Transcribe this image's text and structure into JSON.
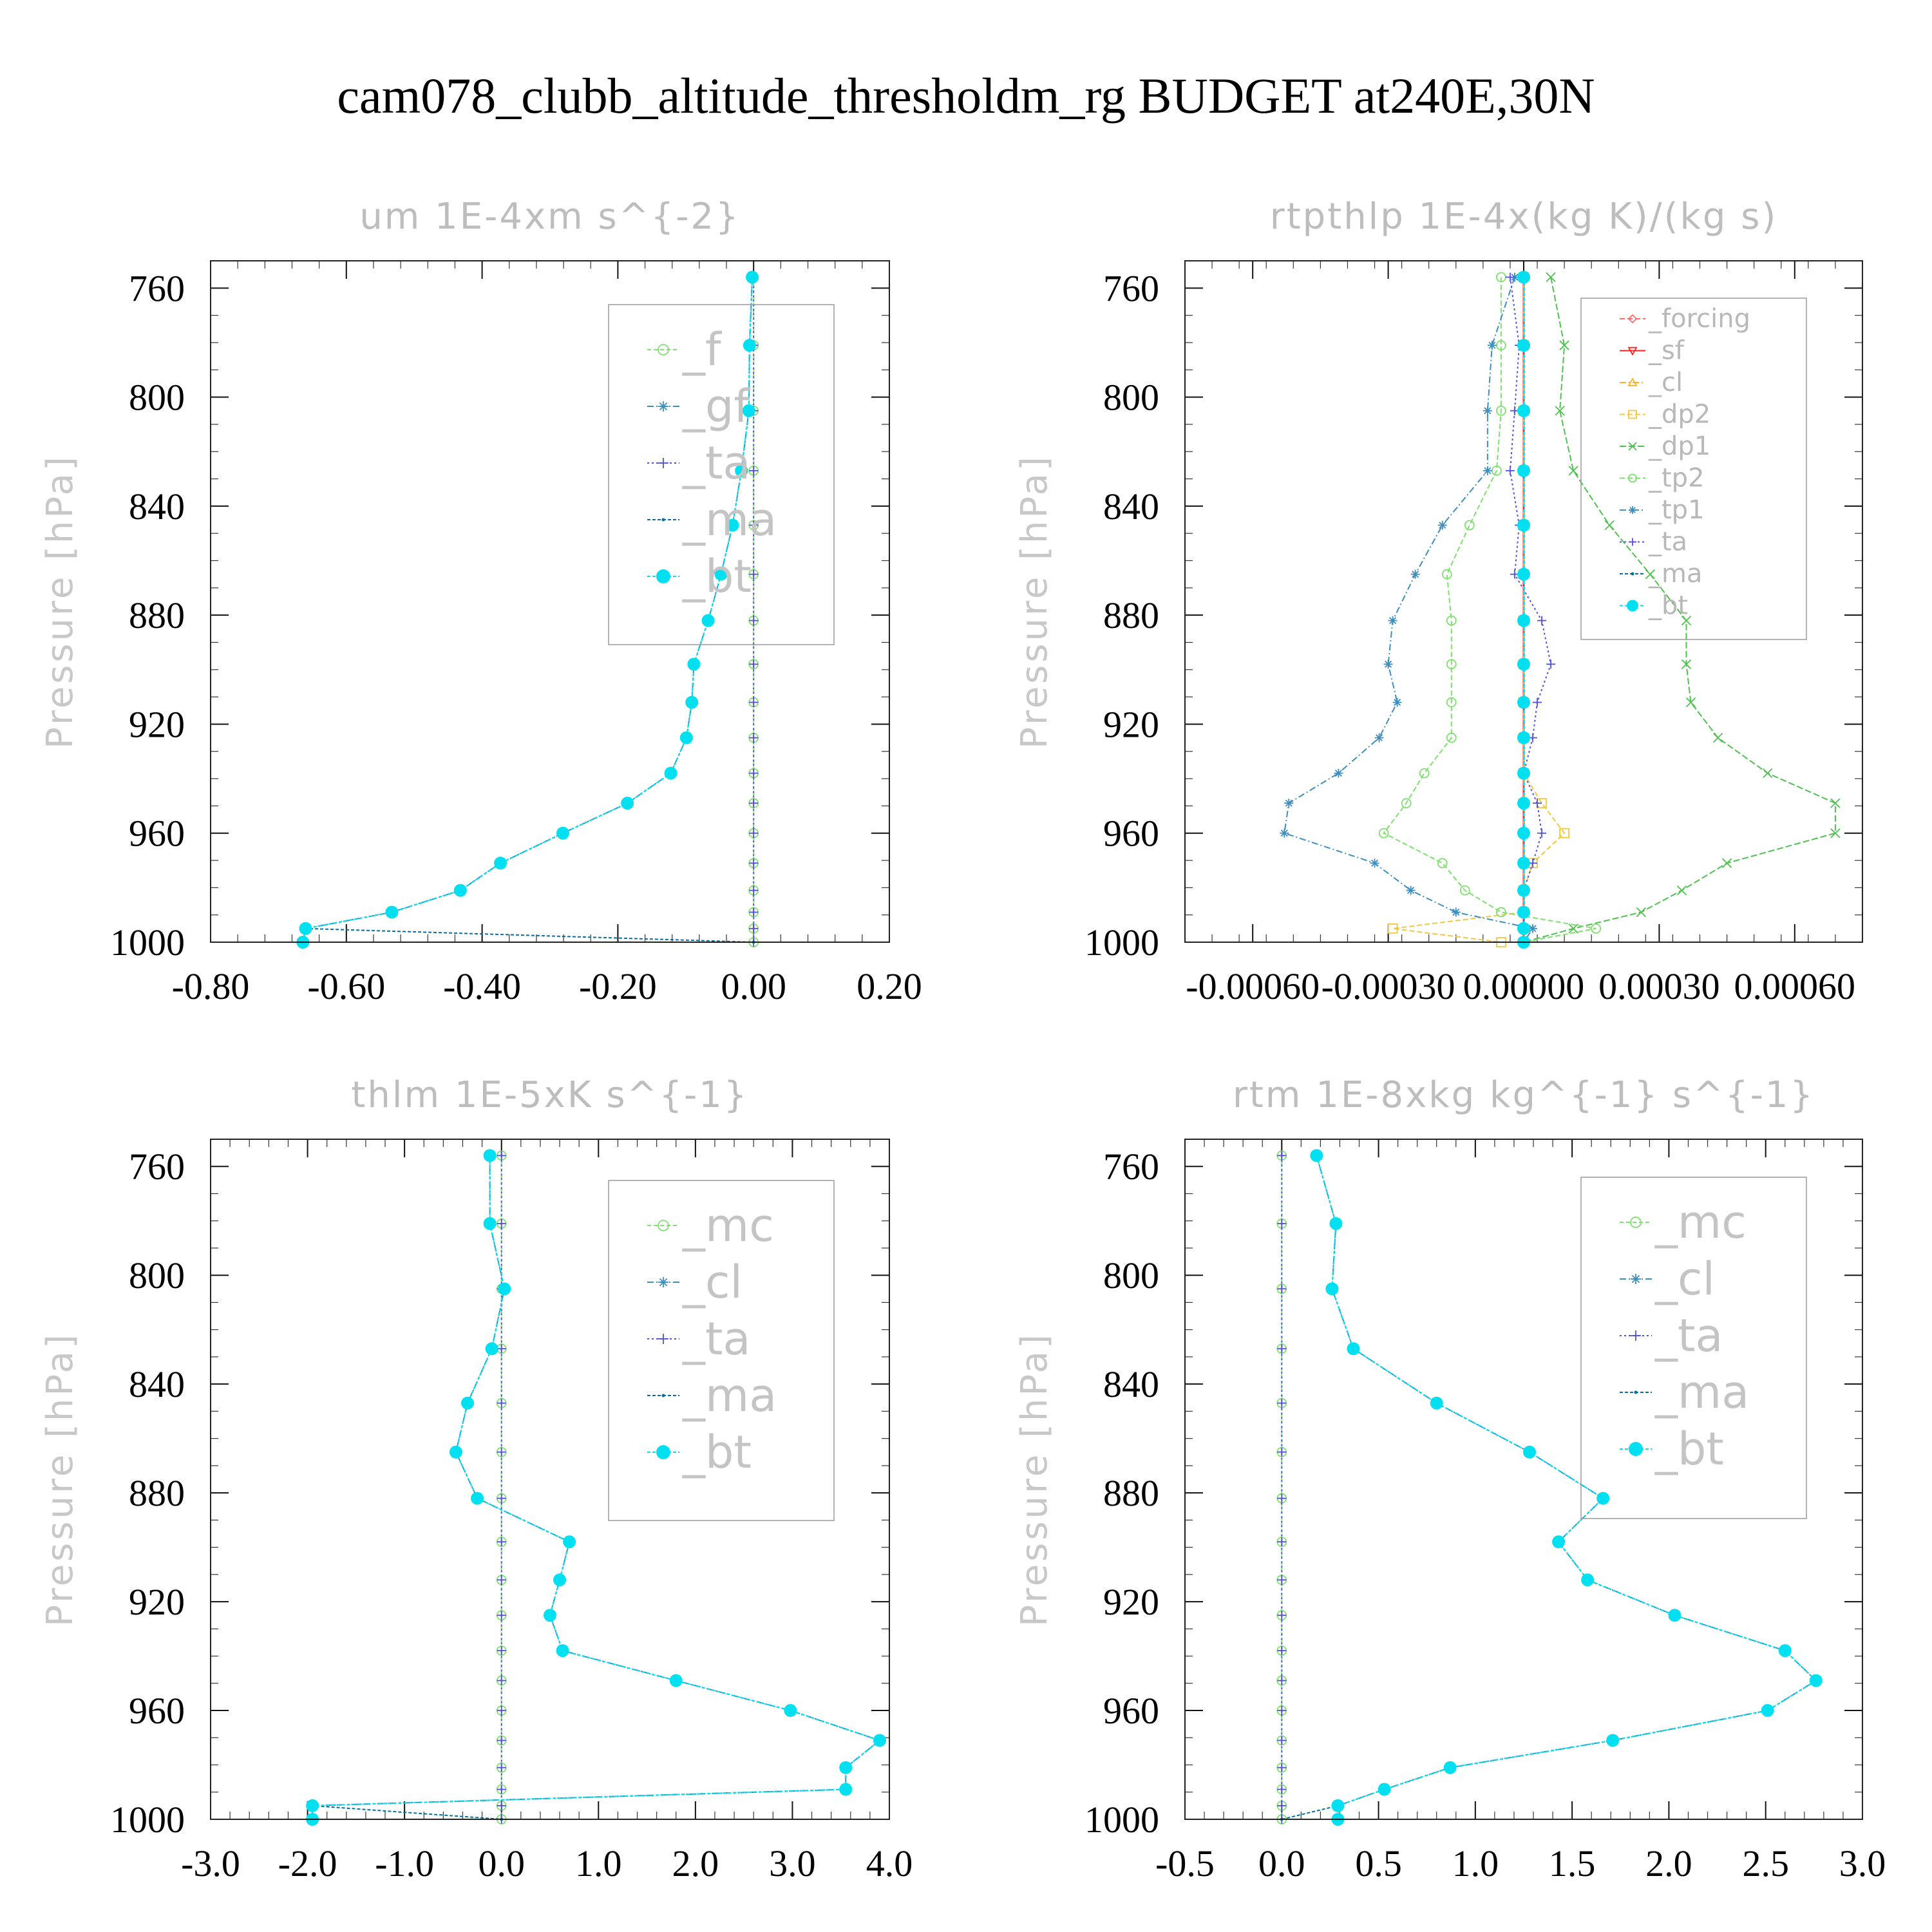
{
  "title": "cam078_clubb_altitude_thresholdm_rg  BUDGET at240E,30N",
  "y_axis_label": "Pressure [hPa]",
  "colors": {
    "_forcing": "#ff6a6a",
    "_sf": "#ff2020",
    "_cl_rtpthlp": "#ffb020",
    "_dp2": "#f0c840",
    "_dp1": "#50c050",
    "_tp2": "#7ee06e",
    "_tp1": "#3c8fc0",
    "_ta": "#5050e0",
    "_ma": "#0070a0",
    "_bt": "#00e0f0",
    "_f": "#7ee06e",
    "_gf": "#3c8fc0",
    "_mc": "#7ee06e",
    "_cl": "#3c8fc0"
  },
  "chart_data": [
    {
      "type": "line",
      "title": "um  1E-4xm s^{-2}",
      "ylabel": "Pressure [hPa]",
      "xlim": [
        -0.8,
        0.2
      ],
      "ylim": [
        750,
        1000
      ],
      "xticks": [
        "-0.80",
        "-0.60",
        "-0.40",
        "-0.20",
        "0.00",
        "0.20"
      ],
      "xtick_values": [
        -0.8,
        -0.6,
        -0.4,
        -0.2,
        0.0,
        0.2
      ],
      "yticks": [
        "760",
        "800",
        "840",
        "880",
        "920",
        "960",
        "1000"
      ],
      "ytick_values": [
        760,
        800,
        840,
        880,
        920,
        960,
        1000
      ],
      "legend_size": "big",
      "legend": [
        "_f",
        "_gf",
        "_ta",
        "_ma",
        "_bt"
      ],
      "pressure": [
        756,
        781,
        805,
        827,
        847,
        865,
        882,
        898,
        912,
        925,
        938,
        949,
        960,
        971,
        981,
        989,
        995,
        1000
      ],
      "series": [
        {
          "name": "_f",
          "marker": "circle",
          "dash": "6,4",
          "values": [
            0.0,
            0.0,
            0.0,
            0.0,
            0.0,
            0.0,
            0.0,
            0.0,
            0.0,
            0.0,
            0.0,
            0.0,
            0.0,
            0.0,
            0.0,
            0.0,
            0.0,
            0.0
          ]
        },
        {
          "name": "_gf",
          "marker": "star",
          "dash": "10,4,2,4",
          "values": [
            -0.002,
            -0.006,
            -0.007,
            -0.018,
            -0.031,
            -0.048,
            -0.067,
            -0.088,
            -0.091,
            -0.099,
            -0.122,
            -0.186,
            -0.281,
            -0.373,
            -0.432,
            -0.533,
            -0.66,
            -0.664
          ]
        },
        {
          "name": "_ta",
          "marker": "plus",
          "dash": "3,4",
          "values": [
            0.0,
            0.0,
            0.0,
            0.0,
            0.0,
            0.0,
            0.0,
            0.0,
            0.0,
            0.0,
            0.0,
            0.0,
            0.0,
            0.0,
            0.0,
            0.0,
            0.0,
            0.0
          ]
        },
        {
          "name": "_ma",
          "marker": "dot",
          "dash": "5,3",
          "values": [
            -0.002,
            -0.006,
            -0.007,
            -0.018,
            -0.031,
            -0.048,
            -0.067,
            -0.088,
            -0.091,
            -0.099,
            -0.122,
            -0.186,
            -0.281,
            -0.373,
            -0.432,
            -0.533,
            -0.66,
            0.0
          ]
        },
        {
          "name": "_bt",
          "marker": "fcircle",
          "dash": "5,3",
          "values": [
            -0.002,
            -0.006,
            -0.007,
            -0.018,
            -0.031,
            -0.048,
            -0.067,
            -0.088,
            -0.091,
            -0.099,
            -0.122,
            -0.186,
            -0.281,
            -0.373,
            -0.432,
            -0.533,
            -0.66,
            -0.664
          ]
        }
      ]
    },
    {
      "type": "line",
      "title": "rtpthlp  1E-4x(kg K)/(kg s)",
      "ylabel": "Pressure [hPa]",
      "xlim": [
        -0.00075,
        0.00075
      ],
      "ylim": [
        750,
        1000
      ],
      "xticks": [
        "-0.00060",
        "-0.00030",
        "0.00000",
        "0.00030",
        "0.00060"
      ],
      "xtick_values": [
        -0.0006,
        -0.0003,
        0.0,
        0.0003,
        0.0006
      ],
      "yticks": [
        "760",
        "800",
        "840",
        "880",
        "920",
        "960",
        "1000"
      ],
      "ytick_values": [
        760,
        800,
        840,
        880,
        920,
        960,
        1000
      ],
      "legend_size": "small",
      "legend": [
        "_forcing",
        "_sf",
        "_cl",
        "_dp2",
        "_dp1",
        "_tp2",
        "_tp1",
        "_ta",
        "_ma",
        "_bt"
      ],
      "pressure": [
        756,
        781,
        805,
        827,
        847,
        865,
        882,
        898,
        912,
        925,
        938,
        949,
        960,
        971,
        981,
        989,
        995,
        1000
      ],
      "series": [
        {
          "name": "_forcing",
          "marker": "diamond",
          "dash": "8,4",
          "values": [
            0.0,
            0.0,
            0.0,
            0.0,
            0.0,
            0.0,
            0.0,
            0.0,
            0.0,
            0.0,
            0.0,
            0.0,
            0.0,
            0.0,
            0.0,
            0.0,
            0.0,
            0.0
          ]
        },
        {
          "name": "_sf",
          "marker": "tdown",
          "dash": "none",
          "values": [
            0.0,
            0.0,
            0.0,
            0.0,
            0.0,
            0.0,
            0.0,
            0.0,
            0.0,
            0.0,
            0.0,
            0.0,
            0.0,
            0.0,
            0.0,
            0.0,
            0.0,
            0.0
          ]
        },
        {
          "name": "_cl",
          "marker": "tup",
          "dash": "10,4,2,4",
          "values": [
            0.0,
            0.0,
            0.0,
            0.0,
            0.0,
            0.0,
            0.0,
            0.0,
            0.0,
            0.0,
            0.0,
            0.0,
            0.0,
            0.0,
            0.0,
            0.0,
            0.0,
            0.0
          ]
        },
        {
          "name": "_dp2",
          "marker": "square",
          "dash": "8,4",
          "values": [
            0.0,
            0.0,
            0.0,
            0.0,
            0.0,
            0.0,
            0.0,
            0.0,
            0.0,
            0.0,
            0.0,
            4e-05,
            9e-05,
            2e-05,
            0.0,
            0.0,
            -0.00029,
            -5e-05
          ]
        },
        {
          "name": "_dp1",
          "marker": "cross",
          "dash": "10,4",
          "values": [
            6e-05,
            9e-05,
            8e-05,
            0.00011,
            0.00019,
            0.00028,
            0.00036,
            0.00036,
            0.00037,
            0.00043,
            0.00054,
            0.00069,
            0.00069,
            0.00045,
            0.00035,
            0.00026,
            0.00011,
            0.0
          ]
        },
        {
          "name": "_tp2",
          "marker": "circle",
          "dash": "8,4",
          "values": [
            -5e-05,
            -5e-05,
            -5e-05,
            -6e-05,
            -0.00012,
            -0.00017,
            -0.00016,
            -0.00016,
            -0.00016,
            -0.00016,
            -0.00022,
            -0.00026,
            -0.00031,
            -0.00018,
            -0.00013,
            -5e-05,
            0.00016,
            0.0
          ]
        },
        {
          "name": "_tp1",
          "marker": "star",
          "dash": "10,4,2,4",
          "values": [
            -2e-05,
            -7e-05,
            -8e-05,
            -8e-05,
            -0.00018,
            -0.00024,
            -0.00029,
            -0.0003,
            -0.00028,
            -0.00032,
            -0.00041,
            -0.00052,
            -0.00053,
            -0.00033,
            -0.00025,
            -0.00015,
            2e-05,
            0.0
          ]
        },
        {
          "name": "_ta",
          "marker": "plus",
          "dash": "3,4",
          "values": [
            -3e-05,
            -1e-05,
            -2e-05,
            -3e-05,
            -1e-05,
            -2e-05,
            4e-05,
            6e-05,
            3e-05,
            2e-05,
            0.0,
            3e-05,
            4e-05,
            2e-05,
            0.0,
            0.0,
            0.0,
            0.0
          ]
        },
        {
          "name": "_ma",
          "marker": "dot",
          "dash": "5,3",
          "values": [
            0.0,
            0.0,
            0.0,
            0.0,
            0.0,
            0.0,
            0.0,
            0.0,
            0.0,
            0.0,
            0.0,
            0.0,
            0.0,
            0.0,
            0.0,
            0.0,
            0.0,
            0.0
          ]
        },
        {
          "name": "_bt",
          "marker": "fcircle",
          "dash": "5,3",
          "values": [
            0.0,
            0.0,
            0.0,
            0.0,
            0.0,
            0.0,
            0.0,
            0.0,
            0.0,
            0.0,
            0.0,
            0.0,
            0.0,
            0.0,
            0.0,
            0.0,
            0.0,
            0.0
          ]
        }
      ]
    },
    {
      "type": "line",
      "title": "thlm  1E-5xK s^{-1}",
      "ylabel": "Pressure [hPa]",
      "xlim": [
        -3.0,
        4.0
      ],
      "ylim": [
        750,
        1000
      ],
      "xticks": [
        "-3.0",
        "-2.0",
        "-1.0",
        "0.0",
        "1.0",
        "2.0",
        "3.0",
        "4.0"
      ],
      "xtick_values": [
        -3.0,
        -2.0,
        -1.0,
        0.0,
        1.0,
        2.0,
        3.0,
        4.0
      ],
      "yticks": [
        "760",
        "800",
        "840",
        "880",
        "920",
        "960",
        "1000"
      ],
      "ytick_values": [
        760,
        800,
        840,
        880,
        920,
        960,
        1000
      ],
      "legend_size": "big",
      "legend": [
        "_mc",
        "_cl",
        "_ta",
        "_ma",
        "_bt"
      ],
      "pressure": [
        756,
        781,
        805,
        827,
        847,
        865,
        882,
        898,
        912,
        925,
        938,
        949,
        960,
        971,
        981,
        989,
        995,
        1000
      ],
      "series": [
        {
          "name": "_mc",
          "marker": "circle",
          "dash": "6,4",
          "values": [
            0.0,
            0.0,
            0.0,
            0.0,
            0.0,
            0.0,
            0.0,
            0.0,
            0.0,
            0.0,
            0.0,
            0.0,
            0.0,
            0.0,
            0.0,
            0.0,
            0.0,
            0.0
          ]
        },
        {
          "name": "_cl",
          "marker": "star",
          "dash": "10,4,2,4",
          "values": [
            -0.12,
            -0.12,
            0.03,
            -0.1,
            -0.35,
            -0.47,
            -0.25,
            0.7,
            0.6,
            0.5,
            0.63,
            1.8,
            2.98,
            3.9,
            3.55,
            3.55,
            -1.95,
            -1.95
          ]
        },
        {
          "name": "_ta",
          "marker": "plus",
          "dash": "3,4",
          "values": [
            0.0,
            0.0,
            0.0,
            0.0,
            0.0,
            0.0,
            0.0,
            0.0,
            0.0,
            0.0,
            0.0,
            0.0,
            0.0,
            0.0,
            0.0,
            0.0,
            0.0,
            0.0
          ]
        },
        {
          "name": "_ma",
          "marker": "dot",
          "dash": "5,3",
          "values": [
            -0.12,
            -0.12,
            0.03,
            -0.1,
            -0.35,
            -0.47,
            -0.25,
            0.7,
            0.6,
            0.5,
            0.63,
            1.8,
            2.98,
            3.9,
            3.55,
            3.55,
            -1.95,
            0.0
          ]
        },
        {
          "name": "_bt",
          "marker": "fcircle",
          "dash": "5,3",
          "values": [
            -0.12,
            -0.12,
            0.03,
            -0.1,
            -0.35,
            -0.47,
            -0.25,
            0.7,
            0.6,
            0.5,
            0.63,
            1.8,
            2.98,
            3.9,
            3.55,
            3.55,
            -1.95,
            -1.95
          ]
        }
      ]
    },
    {
      "type": "line",
      "title": "rtm  1E-8xkg kg^{-1} s^{-1}",
      "ylabel": "Pressure [hPa]",
      "xlim": [
        -0.5,
        3.0
      ],
      "ylim": [
        750,
        1000
      ],
      "xticks": [
        "-0.5",
        "0.0",
        "0.5",
        "1.0",
        "1.5",
        "2.0",
        "2.5",
        "3.0"
      ],
      "xtick_values": [
        -0.5,
        0.0,
        0.5,
        1.0,
        1.5,
        2.0,
        2.5,
        3.0
      ],
      "yticks": [
        "760",
        "800",
        "840",
        "880",
        "920",
        "960",
        "1000"
      ],
      "ytick_values": [
        760,
        800,
        840,
        880,
        920,
        960,
        1000
      ],
      "legend_size": "big",
      "legend": [
        "_mc",
        "_cl",
        "_ta",
        "_ma",
        "_bt"
      ],
      "pressure": [
        756,
        781,
        805,
        827,
        847,
        865,
        882,
        898,
        912,
        925,
        938,
        949,
        960,
        971,
        981,
        989,
        995,
        1000
      ],
      "series": [
        {
          "name": "_mc",
          "marker": "circle",
          "dash": "6,4",
          "values": [
            0.0,
            0.0,
            0.0,
            0.0,
            0.0,
            0.0,
            0.0,
            0.0,
            0.0,
            0.0,
            0.0,
            0.0,
            0.0,
            0.0,
            0.0,
            0.0,
            0.0,
            0.0
          ]
        },
        {
          "name": "_cl",
          "marker": "star",
          "dash": "10,4,2,4",
          "values": [
            0.18,
            0.28,
            0.26,
            0.37,
            0.8,
            1.28,
            1.66,
            1.43,
            1.58,
            2.03,
            2.6,
            2.76,
            2.51,
            1.71,
            0.87,
            0.53,
            0.29,
            0.29
          ]
        },
        {
          "name": "_ta",
          "marker": "plus",
          "dash": "3,4",
          "values": [
            0.0,
            0.0,
            0.0,
            0.0,
            0.0,
            0.0,
            0.0,
            0.0,
            0.0,
            0.0,
            0.0,
            0.0,
            0.0,
            0.0,
            0.0,
            0.0,
            0.0,
            0.0
          ]
        },
        {
          "name": "_ma",
          "marker": "dot",
          "dash": "5,3",
          "values": [
            0.18,
            0.28,
            0.26,
            0.37,
            0.8,
            1.28,
            1.66,
            1.43,
            1.58,
            2.03,
            2.6,
            2.76,
            2.51,
            1.71,
            0.87,
            0.53,
            0.29,
            0.0
          ]
        },
        {
          "name": "_bt",
          "marker": "fcircle",
          "dash": "5,3",
          "values": [
            0.18,
            0.28,
            0.26,
            0.37,
            0.8,
            1.28,
            1.66,
            1.43,
            1.58,
            2.03,
            2.6,
            2.76,
            2.51,
            1.71,
            0.87,
            0.53,
            0.29,
            0.29
          ]
        }
      ]
    }
  ]
}
